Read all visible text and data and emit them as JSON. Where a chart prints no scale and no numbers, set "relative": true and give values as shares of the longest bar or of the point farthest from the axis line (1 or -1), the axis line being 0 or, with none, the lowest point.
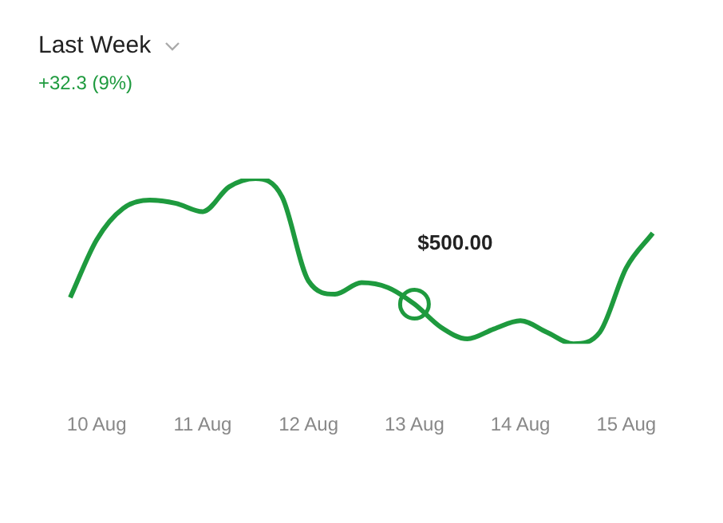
{
  "chart_data": {
    "type": "line",
    "title": "Last Week",
    "subtitle": "+32.3 (9%)",
    "relative": true,
    "marker": "none",
    "grid": false,
    "legend": false,
    "categories": [
      null,
      "10 Aug",
      null,
      null,
      null,
      "11 Aug",
      null,
      null,
      null,
      "12 Aug",
      null,
      null,
      null,
      "13 Aug",
      null,
      null,
      null,
      "14 Aug",
      null,
      null,
      null,
      "15 Aug",
      null
    ],
    "series": [
      {
        "color": "#1e9a3e",
        "values": [
          0.28,
          0.63,
          0.82,
          0.87,
          0.85,
          0.8,
          0.95,
          1,
          0.89,
          0.38,
          0.3,
          0.37,
          0.34,
          0.24,
          0.1,
          0.03,
          0.09,
          0.14,
          0.07,
          0,
          0.07,
          0.46,
          0.67
        ]
      }
    ],
    "annotations": [
      {
        "text": "$500.00",
        "x": "13 Aug",
        "y": 0.24
      }
    ]
  }
}
